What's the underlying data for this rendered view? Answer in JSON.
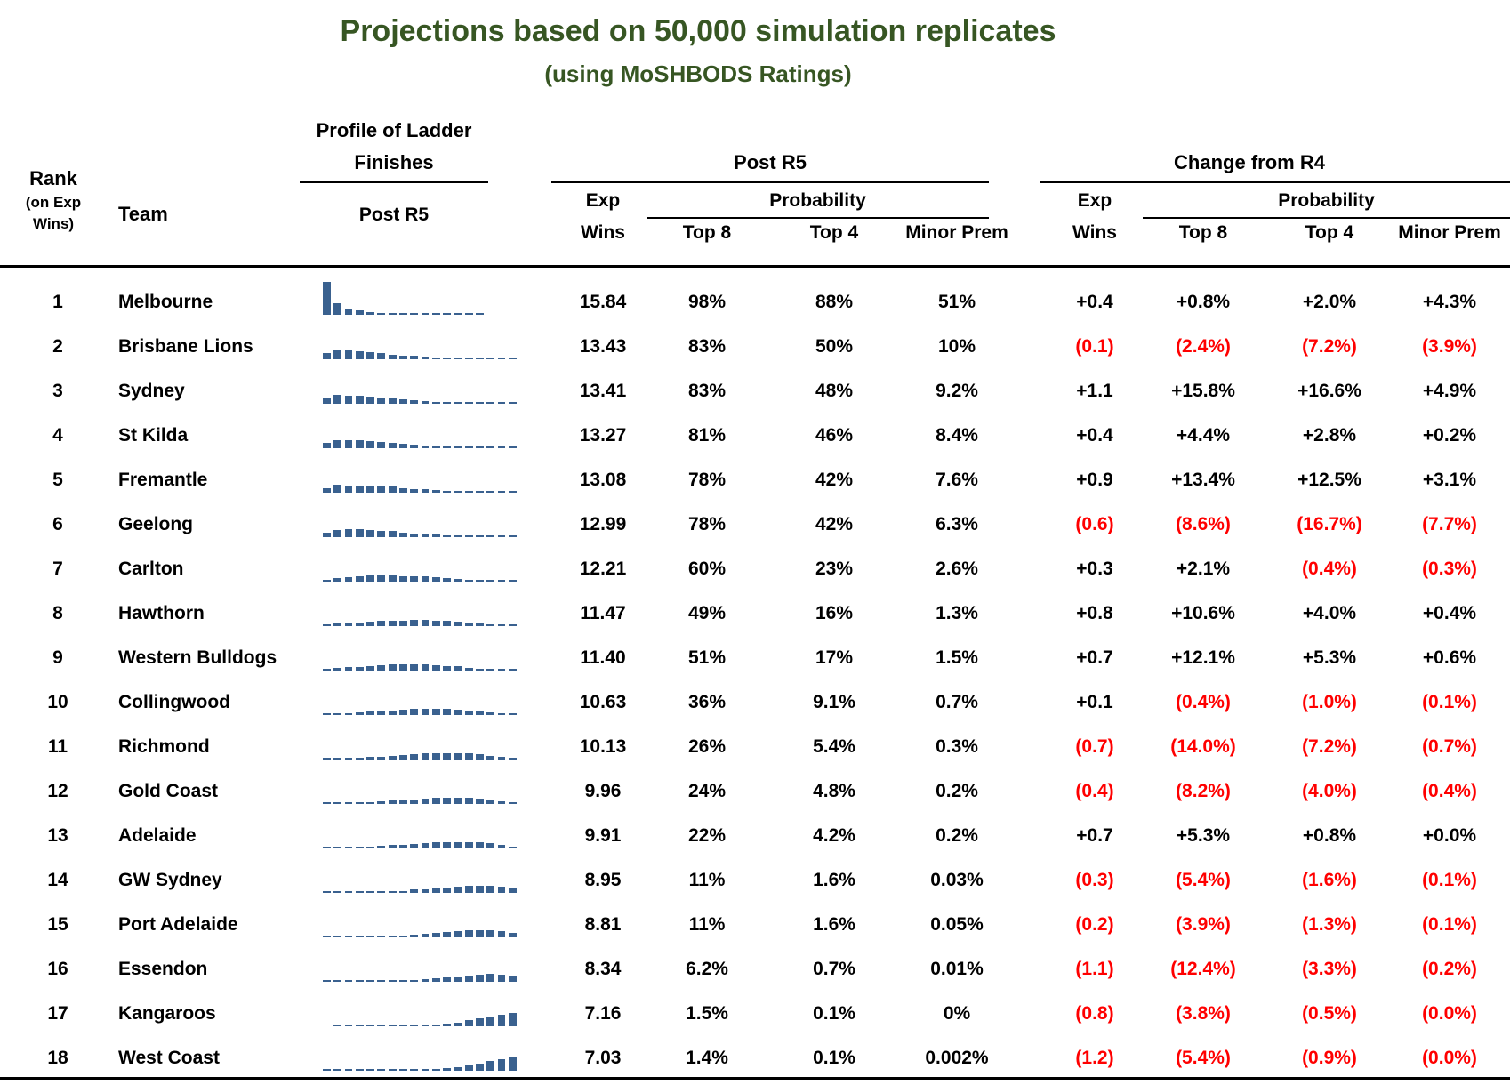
{
  "title": "Projections based on 50,000 simulation replicates",
  "subtitle": "(using MoSHBODS Ratings)",
  "colors": {
    "title_green": "#375623",
    "bar_blue": "#3a618f",
    "negative_red": "#ff0000",
    "text_black": "#000000"
  },
  "header": {
    "rank": "Rank",
    "rank_sub1": "(on Exp",
    "rank_sub2": "Wins)",
    "team": "Team",
    "profile_title_line1": "Profile of Ladder",
    "profile_title_line2": "Finishes",
    "profile_sub": "Post R5",
    "post_r5_group": "Post R5",
    "change_group": "Change from R4",
    "exp": "Exp",
    "wins": "Wins",
    "probability": "Probability",
    "top8": "Top 8",
    "top4": "Top 4",
    "minor_prem": "Minor Prem"
  },
  "chart_data": {
    "type": "table",
    "title": "Projections based on 50,000 simulation replicates",
    "subtitle": "(using MoSHBODS Ratings)",
    "sparkline_note": "Profile of Ladder Finishes (Post R5): estimated probability in % of finishing in each ladder position 1-18, drawn as a mini bar chart per team",
    "columns": [
      "Rank (on Exp Wins)",
      "Team",
      "Profile of Ladder Finishes Post R5",
      "Post R5 Exp Wins",
      "Post R5 Top 8",
      "Post R5 Top 4",
      "Post R5 Minor Prem",
      "Change from R4 Exp Wins",
      "Change from R4 Top 8",
      "Change from R4 Top 4",
      "Change from R4 Minor Prem"
    ],
    "rows": [
      {
        "rank": "1",
        "team": "Melbourne",
        "exp_wins": "15.84",
        "top8": "98%",
        "top4": "88%",
        "minor_prem": "51%",
        "chg_exp_wins": "+0.4",
        "chg_top8": "+0.8%",
        "chg_top4": "+2.0%",
        "chg_minor_prem": "+4.3%",
        "ladder_profile_pct": [
          51,
          18,
          10,
          7,
          4,
          2.5,
          1.5,
          1,
          0.7,
          0.5,
          0.4,
          0.3,
          0.3,
          0.2,
          0.1,
          0,
          0,
          0
        ]
      },
      {
        "rank": "2",
        "team": "Brisbane Lions",
        "exp_wins": "13.43",
        "top8": "83%",
        "top4": "50%",
        "minor_prem": "10%",
        "chg_exp_wins": "(0.1)",
        "chg_top8": "(2.4%)",
        "chg_top4": "(7.2%)",
        "chg_minor_prem": "(3.9%)",
        "ladder_profile_pct": [
          10,
          14,
          13.5,
          12.5,
          10.5,
          9,
          7.5,
          6,
          5,
          4,
          3,
          2.2,
          1.4,
          0.8,
          0.4,
          0.2,
          0.1,
          0.1
        ]
      },
      {
        "rank": "3",
        "team": "Sydney",
        "exp_wins": "13.41",
        "top8": "83%",
        "top4": "48%",
        "minor_prem": "9.2%",
        "chg_exp_wins": "+1.1",
        "chg_top8": "+15.8%",
        "chg_top4": "+16.6%",
        "chg_minor_prem": "+4.9%",
        "ladder_profile_pct": [
          9.2,
          14,
          13,
          12.5,
          10.5,
          9,
          8,
          6.8,
          5.3,
          4.3,
          3.2,
          2.3,
          1.4,
          0.8,
          0.4,
          0.2,
          0.1,
          0.1
        ]
      },
      {
        "rank": "4",
        "team": "St Kilda",
        "exp_wins": "13.27",
        "top8": "81%",
        "top4": "46%",
        "minor_prem": "8.4%",
        "chg_exp_wins": "+0.4",
        "chg_top8": "+4.4%",
        "chg_top4": "+2.8%",
        "chg_minor_prem": "+0.2%",
        "ladder_profile_pct": [
          8.4,
          13,
          12.5,
          12,
          10.5,
          9.5,
          8.5,
          6.6,
          5.5,
          4.5,
          3.4,
          2.5,
          1.6,
          0.9,
          0.4,
          0.2,
          0.1,
          0.1
        ]
      },
      {
        "rank": "5",
        "team": "Fremantle",
        "exp_wins": "13.08",
        "top8": "78%",
        "top4": "42%",
        "minor_prem": "7.6%",
        "chg_exp_wins": "+0.9",
        "chg_top8": "+13.4%",
        "chg_top4": "+12.5%",
        "chg_minor_prem": "+3.1%",
        "ladder_profile_pct": [
          7.6,
          12,
          11.5,
          11,
          10.5,
          9.5,
          9,
          6.9,
          6,
          5,
          4,
          3,
          2,
          1.2,
          0.5,
          0.2,
          0.1,
          0.1
        ]
      },
      {
        "rank": "6",
        "team": "Geelong",
        "exp_wins": "12.99",
        "top8": "78%",
        "top4": "42%",
        "minor_prem": "6.3%",
        "chg_exp_wins": "(0.6)",
        "chg_top8": "(8.6%)",
        "chg_top4": "(16.7%)",
        "chg_minor_prem": "(7.7%)",
        "ladder_profile_pct": [
          6.3,
          11,
          12,
          12,
          11,
          9.7,
          9,
          7,
          6,
          5,
          4,
          3,
          2,
          1.3,
          0.6,
          0.3,
          0.1,
          0.1
        ]
      },
      {
        "rank": "7",
        "team": "Carlton",
        "exp_wins": "12.21",
        "top8": "60%",
        "top4": "23%",
        "minor_prem": "2.6%",
        "chg_exp_wins": "+0.3",
        "chg_top8": "+2.1%",
        "chg_top4": "(0.4%)",
        "chg_minor_prem": "(0.3%)",
        "ladder_profile_pct": [
          2.6,
          5.5,
          7,
          8,
          9,
          9.7,
          9.6,
          8.6,
          8.5,
          8,
          7,
          6,
          4.5,
          3,
          2,
          1,
          0.5,
          0.2
        ]
      },
      {
        "rank": "8",
        "team": "Hawthorn",
        "exp_wins": "11.47",
        "top8": "49%",
        "top4": "16%",
        "minor_prem": "1.3%",
        "chg_exp_wins": "+0.8",
        "chg_top8": "+10.6%",
        "chg_top4": "+4.0%",
        "chg_minor_prem": "+0.4%",
        "ladder_profile_pct": [
          1.3,
          3.5,
          5,
          6.2,
          7.5,
          8.3,
          8.5,
          8.7,
          9,
          9,
          8.5,
          8,
          7,
          5,
          3.5,
          2,
          1,
          0.5
        ]
      },
      {
        "rank": "9",
        "team": "Western Bulldogs",
        "exp_wins": "11.40",
        "top8": "51%",
        "top4": "17%",
        "minor_prem": "1.5%",
        "chg_exp_wins": "+0.7",
        "chg_top8": "+12.1%",
        "chg_top4": "+5.3%",
        "chg_minor_prem": "+0.6%",
        "ladder_profile_pct": [
          1.5,
          4,
          5.5,
          6,
          7.5,
          8.5,
          9,
          9,
          9,
          9,
          8.5,
          7.5,
          6.5,
          4.5,
          3,
          1.5,
          0.8,
          0.3
        ]
      },
      {
        "rank": "10",
        "team": "Collingwood",
        "exp_wins": "10.63",
        "top8": "36%",
        "top4": "9.1%",
        "minor_prem": "0.7%",
        "chg_exp_wins": "+0.1",
        "chg_top8": "(0.4%)",
        "chg_top4": "(1.0%)",
        "chg_minor_prem": "(0.1%)",
        "ladder_profile_pct": [
          0.7,
          2,
          2.8,
          3.6,
          5.5,
          6.5,
          7,
          8,
          9,
          9.5,
          9.5,
          9.5,
          8.5,
          7.5,
          5.5,
          3.5,
          1.5,
          0.5
        ]
      },
      {
        "rank": "11",
        "team": "Richmond",
        "exp_wins": "10.13",
        "top8": "26%",
        "top4": "5.4%",
        "minor_prem": "0.3%",
        "chg_exp_wins": "(0.7)",
        "chg_top8": "(14.0%)",
        "chg_top4": "(7.2%)",
        "chg_minor_prem": "(0.7%)",
        "ladder_profile_pct": [
          0.3,
          1.2,
          1.8,
          2.1,
          3.6,
          4.5,
          5.5,
          7,
          8,
          9,
          9.5,
          10,
          9.5,
          9,
          8,
          6,
          3.5,
          2
        ]
      },
      {
        "rank": "12",
        "team": "Gold Coast",
        "exp_wins": "9.96",
        "top8": "24%",
        "top4": "4.8%",
        "minor_prem": "0.2%",
        "chg_exp_wins": "(0.4)",
        "chg_top8": "(8.2%)",
        "chg_top4": "(4.0%)",
        "chg_minor_prem": "(0.4%)",
        "ladder_profile_pct": [
          0.2,
          1.1,
          1.5,
          2,
          3.2,
          4.5,
          5.5,
          6,
          7.5,
          8.5,
          9,
          10,
          10,
          9.5,
          8.5,
          7,
          4,
          2.5
        ]
      },
      {
        "rank": "13",
        "team": "Adelaide",
        "exp_wins": "9.91",
        "top8": "22%",
        "top4": "4.2%",
        "minor_prem": "0.2%",
        "chg_exp_wins": "+0.7",
        "chg_top8": "+5.3%",
        "chg_top4": "+0.8%",
        "chg_minor_prem": "+0.0%",
        "ladder_profile_pct": [
          0.2,
          1,
          1.4,
          1.6,
          3,
          4.3,
          5,
          5.5,
          7,
          8,
          9,
          9.5,
          10,
          10,
          9,
          8,
          5,
          3
        ]
      },
      {
        "rank": "14",
        "team": "GW Sydney",
        "exp_wins": "8.95",
        "top8": "11%",
        "top4": "1.6%",
        "minor_prem": "0.03%",
        "chg_exp_wins": "(0.3)",
        "chg_top8": "(5.4%)",
        "chg_top4": "(1.6%)",
        "chg_minor_prem": "(0.1%)",
        "ladder_profile_pct": [
          0.03,
          0.4,
          0.5,
          0.7,
          1.4,
          2,
          2.7,
          3.3,
          5,
          6,
          7.5,
          8.5,
          9.5,
          10.5,
          11,
          10.5,
          9,
          6.5
        ]
      },
      {
        "rank": "15",
        "team": "Port Adelaide",
        "exp_wins": "8.81",
        "top8": "11%",
        "top4": "1.6%",
        "minor_prem": "0.05%",
        "chg_exp_wins": "(0.2)",
        "chg_top8": "(3.9%)",
        "chg_top4": "(1.3%)",
        "chg_minor_prem": "(0.1%)",
        "ladder_profile_pct": [
          0.05,
          0.4,
          0.5,
          0.6,
          1.4,
          2,
          2.7,
          3.4,
          4.8,
          6,
          7.5,
          8.5,
          9.5,
          10.5,
          11,
          10.5,
          9.5,
          7
        ]
      },
      {
        "rank": "16",
        "team": "Essendon",
        "exp_wins": "8.34",
        "top8": "6.2%",
        "top4": "0.7%",
        "minor_prem": "0.01%",
        "chg_exp_wins": "(1.1)",
        "chg_top8": "(12.4%)",
        "chg_top4": "(3.3%)",
        "chg_minor_prem": "(0.2%)",
        "ladder_profile_pct": [
          0.01,
          0.2,
          0.2,
          0.3,
          0.7,
          1.2,
          1.7,
          1.9,
          3,
          4,
          5.5,
          7,
          8.5,
          10,
          11.5,
          12,
          11.5,
          9.5
        ]
      },
      {
        "rank": "17",
        "team": "Kangaroos",
        "exp_wins": "7.16",
        "top8": "1.5%",
        "top4": "0.1%",
        "minor_prem": "0%",
        "chg_exp_wins": "(0.8)",
        "chg_top8": "(3.8%)",
        "chg_top4": "(0.5%)",
        "chg_minor_prem": "(0.0%)",
        "ladder_profile_pct": [
          0,
          0.05,
          0.05,
          0.1,
          0.2,
          0.3,
          0.4,
          0.4,
          0.8,
          1.5,
          2.5,
          4,
          6,
          9,
          12,
          15,
          18,
          21
        ]
      },
      {
        "rank": "18",
        "team": "West Coast",
        "exp_wins": "7.03",
        "top8": "1.4%",
        "top4": "0.1%",
        "minor_prem": "0.002%",
        "chg_exp_wins": "(1.2)",
        "chg_top8": "(5.4%)",
        "chg_top4": "(0.9%)",
        "chg_minor_prem": "(0.0%)",
        "ladder_profile_pct": [
          0.002,
          0.05,
          0.05,
          0.1,
          0.2,
          0.2,
          0.3,
          0.5,
          0.7,
          1.2,
          2,
          3.5,
          5.5,
          8,
          11,
          14.5,
          18.5,
          22.5
        ]
      }
    ]
  }
}
